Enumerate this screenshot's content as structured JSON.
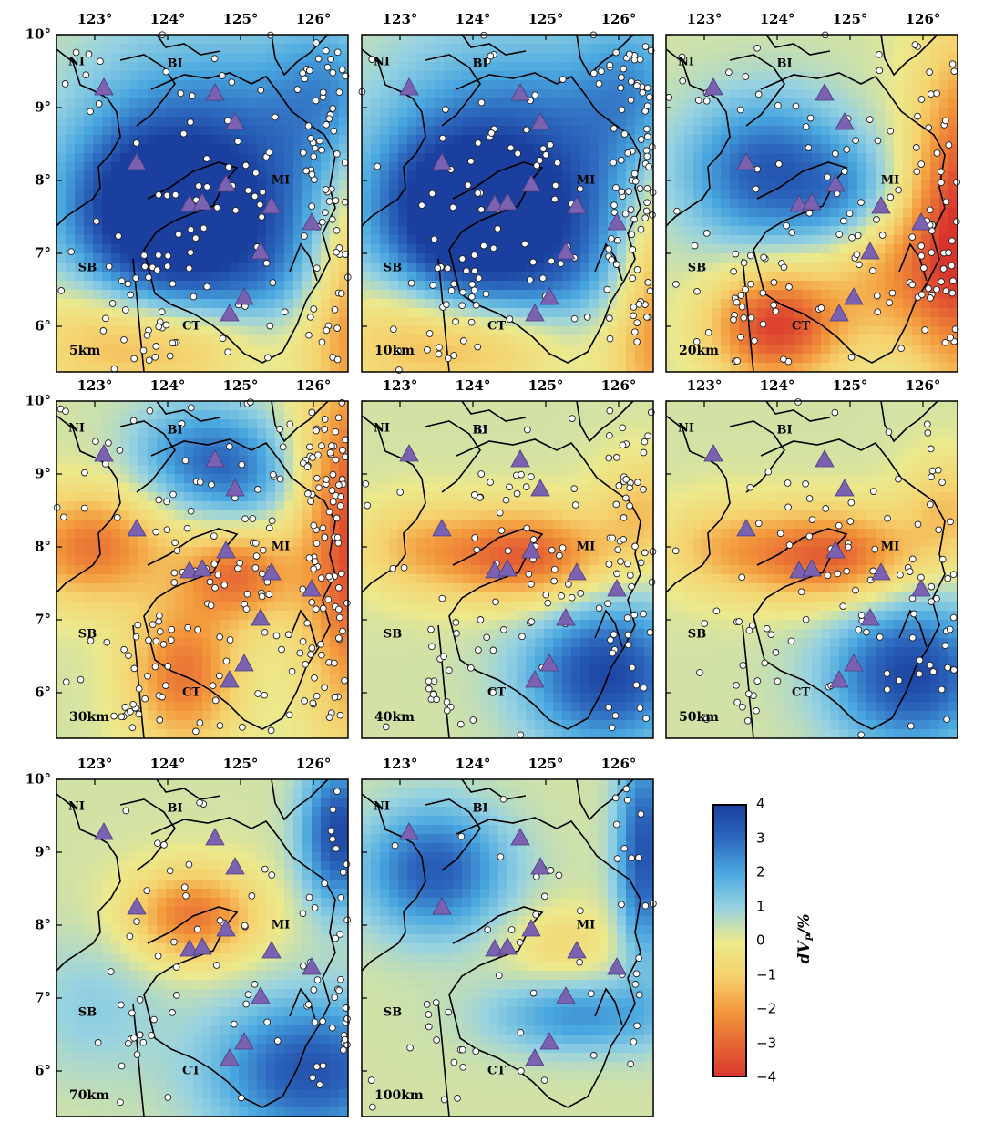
{
  "figure": {
    "longitude_labels": [
      "123°",
      "124°",
      "125°",
      "126°"
    ],
    "latitude_labels": [
      "10°",
      "9°",
      "8°",
      "7°",
      "6°"
    ],
    "regions": [
      "NI",
      "BI",
      "MI",
      "SB",
      "CT"
    ],
    "panels": [
      {
        "depth": "5km",
        "pattern": "shallow-blue"
      },
      {
        "depth": "10km",
        "pattern": "shallow-blue"
      },
      {
        "depth": "20km",
        "pattern": "mixed"
      },
      {
        "depth": "30km",
        "pattern": "red-dominant"
      },
      {
        "depth": "40km",
        "pattern": "central-red-southeast-blue"
      },
      {
        "depth": "50km",
        "pattern": "central-red-southeast-blue"
      },
      {
        "depth": "70km",
        "pattern": "deep-east-blue"
      },
      {
        "depth": "100km",
        "pattern": "deep-west-blue"
      }
    ],
    "colorbar": {
      "title_main": "dV",
      "title_sub": "P",
      "title_unit": "/%",
      "ticks": [
        "4",
        "3",
        "2",
        "1",
        "0",
        "−1",
        "−2",
        "−3",
        "−4"
      ],
      "colors": {
        "max": "#1a3f9e",
        "mid_high": "#4aa8e0",
        "zero": "#ece98c",
        "mid_low": "#f39a3c",
        "min": "#d8342c"
      }
    },
    "symbols": {
      "volcano": "triangle-icon",
      "event": "circle-icon",
      "volcano_color": "#7a62b0",
      "event_color": "#ffffff"
    }
  }
}
